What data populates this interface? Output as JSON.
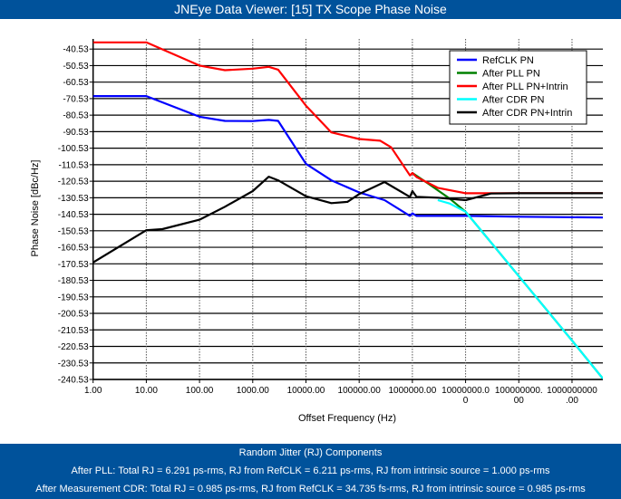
{
  "window": {
    "title": "JNEye Data Viewer: [15] TX Scope Phase Noise"
  },
  "footer": {
    "heading": "Random Jitter (RJ) Components",
    "line1": "After PLL: Total RJ = 6.291 ps-rms, RJ from RefCLK = 6.211 ps-rms, RJ from intrinsic source = 1.000 ps-rms",
    "line2": "After Measurement CDR: Total RJ = 0.985 ps-rms, RJ from RefCLK = 34.735 fs-rms, RJ from intrinsic source = 0.985 ps-rms"
  },
  "chart_data": {
    "type": "line",
    "title": "",
    "xlabel": "Offset Frequency (Hz)",
    "ylabel": "Phase Noise [dBc/Hz]",
    "xscale": "log",
    "xlim": [
      1,
      3800000000
    ],
    "ylim": [
      -240.53,
      -34.4
    ],
    "grid": true,
    "legend_position": "top-right",
    "x_tick_values": [
      1,
      10,
      100,
      1000,
      10000,
      100000,
      1000000,
      10000000,
      100000000,
      1000000000
    ],
    "x_tick_labels": [
      "1.00",
      "10.00",
      "100.00",
      "1000.00",
      "10000.00",
      "100000.00",
      "1000000.00",
      "10000000.0\n0",
      "100000000.\n00",
      "1000000000\n.00"
    ],
    "y_tick_labels": [
      "-40.53",
      "-50.53",
      "-60.53",
      "-70.53",
      "-80.53",
      "-90.53",
      "-100.53",
      "-110.53",
      "-120.53",
      "-130.53",
      "-140.53",
      "-150.53",
      "-160.53",
      "-170.53",
      "-180.53",
      "-190.53",
      "-200.53",
      "-210.53",
      "-220.53",
      "-230.53",
      "-240.53"
    ],
    "series": [
      {
        "name": "RefCLK PN",
        "color": "#0000ff",
        "x": [
          1,
          10,
          100,
          300,
          1000,
          2000,
          3000,
          10000,
          30000,
          100000,
          300000,
          900000,
          1000000,
          1200000,
          10000000,
          100000000,
          3800000000
        ],
        "y": [
          -69,
          -69,
          -81.5,
          -84,
          -84.1,
          -83.4,
          -84,
          -110,
          -120,
          -127.3,
          -132,
          -141.5,
          -140,
          -141.5,
          -141.5,
          -142,
          -142.5
        ]
      },
      {
        "name": "After PLL PN",
        "color": "#008000",
        "x": [
          1000000,
          2000000,
          3000000,
          5000000,
          10000000,
          100000000,
          1000000000,
          3800000000
        ],
        "y": [
          -115.6,
          -122,
          -126,
          -131,
          -139,
          -178,
          -217,
          -240
        ]
      },
      {
        "name": "After PLL PN+Intrin",
        "color": "#ff0000",
        "x": [
          1,
          10,
          100,
          300,
          1000,
          2000,
          3000,
          10000,
          30000,
          100000,
          250000,
          400000,
          900000,
          1000000,
          1200000,
          3000000,
          10000000,
          100000000,
          3800000000
        ],
        "y": [
          -36.5,
          -36.5,
          -50.5,
          -53.3,
          -52.4,
          -51.3,
          -53,
          -74.8,
          -91,
          -95,
          -96,
          -100,
          -117,
          -115.6,
          -118,
          -124.5,
          -127.8,
          -127.8,
          -127.8
        ]
      },
      {
        "name": "After CDR PN",
        "color": "#00ffff",
        "x": [
          3000000,
          5000000,
          10000000,
          100000000,
          1000000000,
          3800000000
        ],
        "y": [
          -132,
          -134,
          -139,
          -178,
          -217,
          -240
        ]
      },
      {
        "name": "After CDR PN+Intrin",
        "color": "#000000",
        "x": [
          1,
          10,
          20,
          100,
          300,
          1000,
          2000,
          3000,
          10000,
          30000,
          60000,
          100000,
          300000,
          900000,
          1000000,
          1200000,
          3000000,
          10000000,
          30000000,
          100000000,
          3800000000
        ],
        "y": [
          -169.7,
          -150.2,
          -149.5,
          -143.8,
          -136,
          -126.5,
          -117.8,
          -120,
          -129.6,
          -133.8,
          -133,
          -128.3,
          -121,
          -130,
          -126.5,
          -130,
          -130.5,
          -132,
          -128,
          -127.8,
          -127.8
        ]
      }
    ]
  }
}
